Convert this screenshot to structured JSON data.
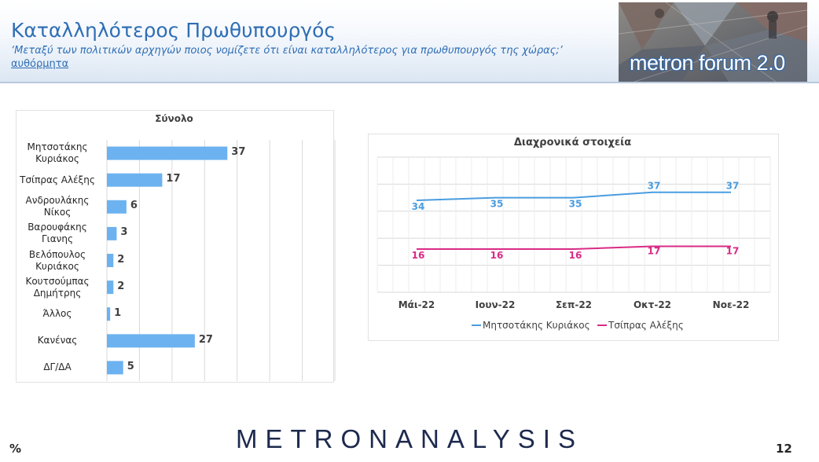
{
  "header": {
    "title": "Καταλληλότερος Πρωθυπουργός",
    "question": "‘Μεταξύ των πολιτικών αρχηγών ποιος νομίζετε ότι είναι καταλληλότερος για πρωθυπουργός της χώρας;’",
    "note": "αυθόρμητα",
    "logo_text": "metron forum 2.0"
  },
  "footer": {
    "brand": "METRONANALYSIS",
    "unit": "%",
    "page_number": "12"
  },
  "colors": {
    "accent": "#2f6eb5",
    "bar": "#6cb2f0",
    "series_1": "#4a9de0",
    "series_2": "#d92b86"
  },
  "chart_data": [
    {
      "type": "bar",
      "orientation": "horizontal",
      "title": "Σύνολο",
      "categories": [
        "Μητσοτάκης\nΚυριάκος",
        "Τσίπρας Αλέξης",
        "Ανδρουλάκης\nΝίκος",
        "Βαρουφάκης\nΓιανης",
        "Βελόπουλος\nΚυριάκος",
        "Κουτσούμπας\nΔημήτρης",
        "Άλλος",
        "Κανένας",
        "ΔΓ/ΔΑ"
      ],
      "values": [
        37,
        17,
        6,
        3,
        2,
        2,
        1,
        27,
        5
      ],
      "xlim": [
        0,
        70
      ],
      "grid": true
    },
    {
      "type": "line",
      "title": "Διαχρονικά στοιχεία",
      "x": [
        "Μάι-22",
        "Ιουν-22",
        "Σεπ-22",
        "Οκτ-22",
        "Νοε-22"
      ],
      "series": [
        {
          "name": "Μητσοτάκης Κυριάκος",
          "values": [
            34,
            35,
            35,
            37,
            37
          ]
        },
        {
          "name": "Τσίπρας Αλέξης",
          "values": [
            16,
            16,
            16,
            17,
            17
          ]
        }
      ],
      "ylim": [
        0,
        50
      ],
      "grid": true,
      "legend": "bottom"
    }
  ]
}
